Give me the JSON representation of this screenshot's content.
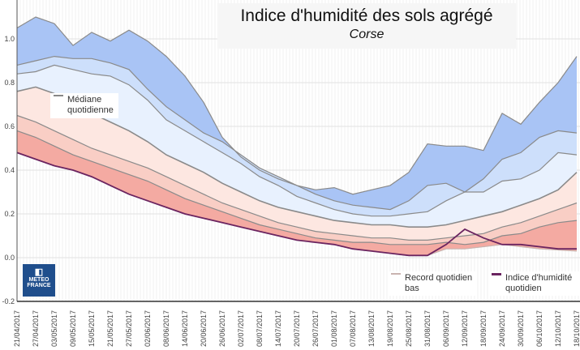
{
  "chart_data": {
    "type": "area",
    "title": "Indice d'humidité des sols agrégé",
    "subtitle": "Corse",
    "ylim": [
      -0.2,
      1.18
    ],
    "yticks": [
      "1.0",
      "0.8",
      "0.6",
      "0.4",
      "0.2",
      "0.0",
      "-0.2"
    ],
    "ytick_values": [
      1.0,
      0.8,
      0.6,
      0.4,
      0.2,
      0.0,
      -0.2
    ],
    "grid": true,
    "categories": [
      "21/04/2017",
      "27/04/2017",
      "03/05/2017",
      "09/05/2017",
      "15/05/2017",
      "21/05/2017",
      "27/05/2017",
      "02/06/2017",
      "08/06/2017",
      "14/06/2017",
      "20/06/2017",
      "26/06/2017",
      "02/07/2017",
      "08/07/2017",
      "14/07/2017",
      "20/07/2017",
      "26/07/2017",
      "01/08/2017",
      "07/08/2017",
      "13/08/2017",
      "19/08/2017",
      "25/08/2017",
      "31/08/2017",
      "06/09/2017",
      "12/09/2017",
      "18/09/2017",
      "24/09/2017",
      "30/09/2017",
      "06/10/2017",
      "12/10/2017",
      "18/10/2017"
    ],
    "bands": [
      {
        "values": [
          1.05,
          1.1,
          1.07,
          0.97,
          1.03,
          0.99,
          1.04,
          0.99,
          0.92,
          0.83,
          0.71,
          0.55,
          0.46,
          0.4,
          0.36,
          0.33,
          0.31,
          0.32,
          0.29,
          0.31,
          0.33,
          0.39,
          0.52,
          0.51,
          0.51,
          0.49,
          0.66,
          0.61,
          0.71,
          0.8,
          0.92
        ]
      },
      {
        "values": [
          0.88,
          0.9,
          0.92,
          0.91,
          0.91,
          0.89,
          0.86,
          0.77,
          0.69,
          0.63,
          0.57,
          0.53,
          0.47,
          0.41,
          0.37,
          0.33,
          0.29,
          0.26,
          0.24,
          0.23,
          0.22,
          0.26,
          0.33,
          0.34,
          0.3,
          0.36,
          0.45,
          0.48,
          0.55,
          0.58,
          0.57
        ]
      },
      {
        "values": [
          0.84,
          0.85,
          0.88,
          0.86,
          0.84,
          0.83,
          0.79,
          0.72,
          0.63,
          0.58,
          0.53,
          0.48,
          0.43,
          0.37,
          0.33,
          0.28,
          0.25,
          0.22,
          0.2,
          0.19,
          0.19,
          0.2,
          0.21,
          0.26,
          0.3,
          0.3,
          0.35,
          0.36,
          0.4,
          0.48,
          0.47
        ]
      },
      {
        "name": "Médiane quotidienne",
        "values": [
          0.76,
          0.78,
          0.75,
          0.71,
          0.66,
          0.62,
          0.58,
          0.53,
          0.47,
          0.43,
          0.39,
          0.34,
          0.3,
          0.26,
          0.23,
          0.21,
          0.19,
          0.17,
          0.16,
          0.15,
          0.15,
          0.14,
          0.14,
          0.15,
          0.17,
          0.19,
          0.21,
          0.24,
          0.27,
          0.31,
          0.39
        ]
      },
      {
        "values": [
          0.65,
          0.62,
          0.58,
          0.54,
          0.5,
          0.47,
          0.44,
          0.41,
          0.37,
          0.33,
          0.29,
          0.25,
          0.22,
          0.19,
          0.16,
          0.14,
          0.12,
          0.11,
          0.1,
          0.09,
          0.09,
          0.08,
          0.08,
          0.09,
          0.1,
          0.11,
          0.14,
          0.16,
          0.19,
          0.22,
          0.25
        ]
      },
      {
        "values": [
          0.58,
          0.55,
          0.51,
          0.47,
          0.44,
          0.41,
          0.38,
          0.35,
          0.31,
          0.27,
          0.24,
          0.21,
          0.18,
          0.15,
          0.13,
          0.11,
          0.09,
          0.08,
          0.07,
          0.07,
          0.06,
          0.06,
          0.06,
          0.07,
          0.06,
          0.07,
          0.1,
          0.11,
          0.14,
          0.16,
          0.17
        ]
      },
      {
        "name": "Record quotidien bas",
        "values": [
          0.48,
          0.45,
          0.42,
          0.4,
          0.37,
          0.33,
          0.29,
          0.26,
          0.23,
          0.2,
          0.18,
          0.16,
          0.14,
          0.12,
          0.1,
          0.08,
          0.07,
          0.06,
          0.04,
          0.03,
          0.02,
          0.01,
          0.01,
          0.04,
          0.04,
          0.05,
          0.06,
          0.05,
          0.04,
          0.035,
          0.03
        ]
      }
    ],
    "series": [
      {
        "name": "Indice d'humidité quotidien",
        "values": [
          0.48,
          0.45,
          0.42,
          0.4,
          0.37,
          0.33,
          0.29,
          0.26,
          0.23,
          0.2,
          0.18,
          0.16,
          0.14,
          0.12,
          0.1,
          0.08,
          0.07,
          0.06,
          0.04,
          0.03,
          0.02,
          0.01,
          0.01,
          0.06,
          0.13,
          0.09,
          0.06,
          0.06,
          0.05,
          0.04,
          0.04
        ]
      }
    ],
    "band_colors": [
      "#a9c4f5",
      "#cddffb",
      "#e8f1fe",
      "#fde7e1",
      "#f9cec5",
      "#f4aaa2"
    ],
    "line_color": "#8a8a8a",
    "index_color": "#6b2460"
  },
  "legend": {
    "median": "Médiane quotidienne",
    "median_l1": "Médiane",
    "median_l2": "quotidienne",
    "low_l1": "Record quotidien",
    "low_l2": "bas",
    "index_l1": "Indice d'humidité",
    "index_l2": "quotidien"
  },
  "logo": {
    "line1": "METEO",
    "line2": "FRANCE"
  }
}
